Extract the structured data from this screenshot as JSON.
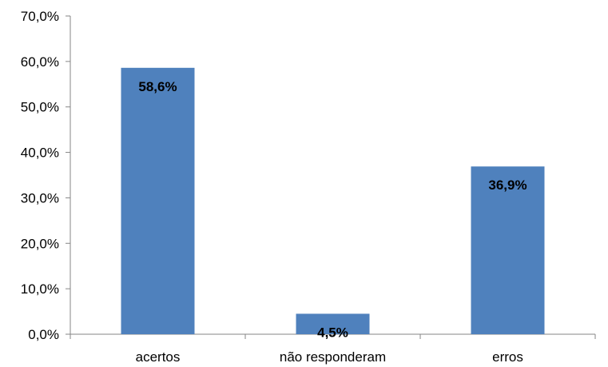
{
  "chart_data": {
    "type": "bar",
    "categories": [
      "acertos",
      "não responderam",
      "erros"
    ],
    "values": [
      58.6,
      4.5,
      36.9
    ],
    "data_labels": [
      "58,6%",
      "4,5%",
      "36,9%"
    ],
    "ylim": [
      0,
      70
    ],
    "yticks": [
      0,
      10,
      20,
      30,
      40,
      50,
      60,
      70
    ],
    "ytick_labels": [
      "0,0%",
      "10,0%",
      "20,0%",
      "30,0%",
      "40,0%",
      "50,0%",
      "60,0%",
      "70,0%"
    ],
    "grid": false,
    "legend": "none",
    "bar_color": "#4F81BD",
    "axis_color": "#868686"
  }
}
